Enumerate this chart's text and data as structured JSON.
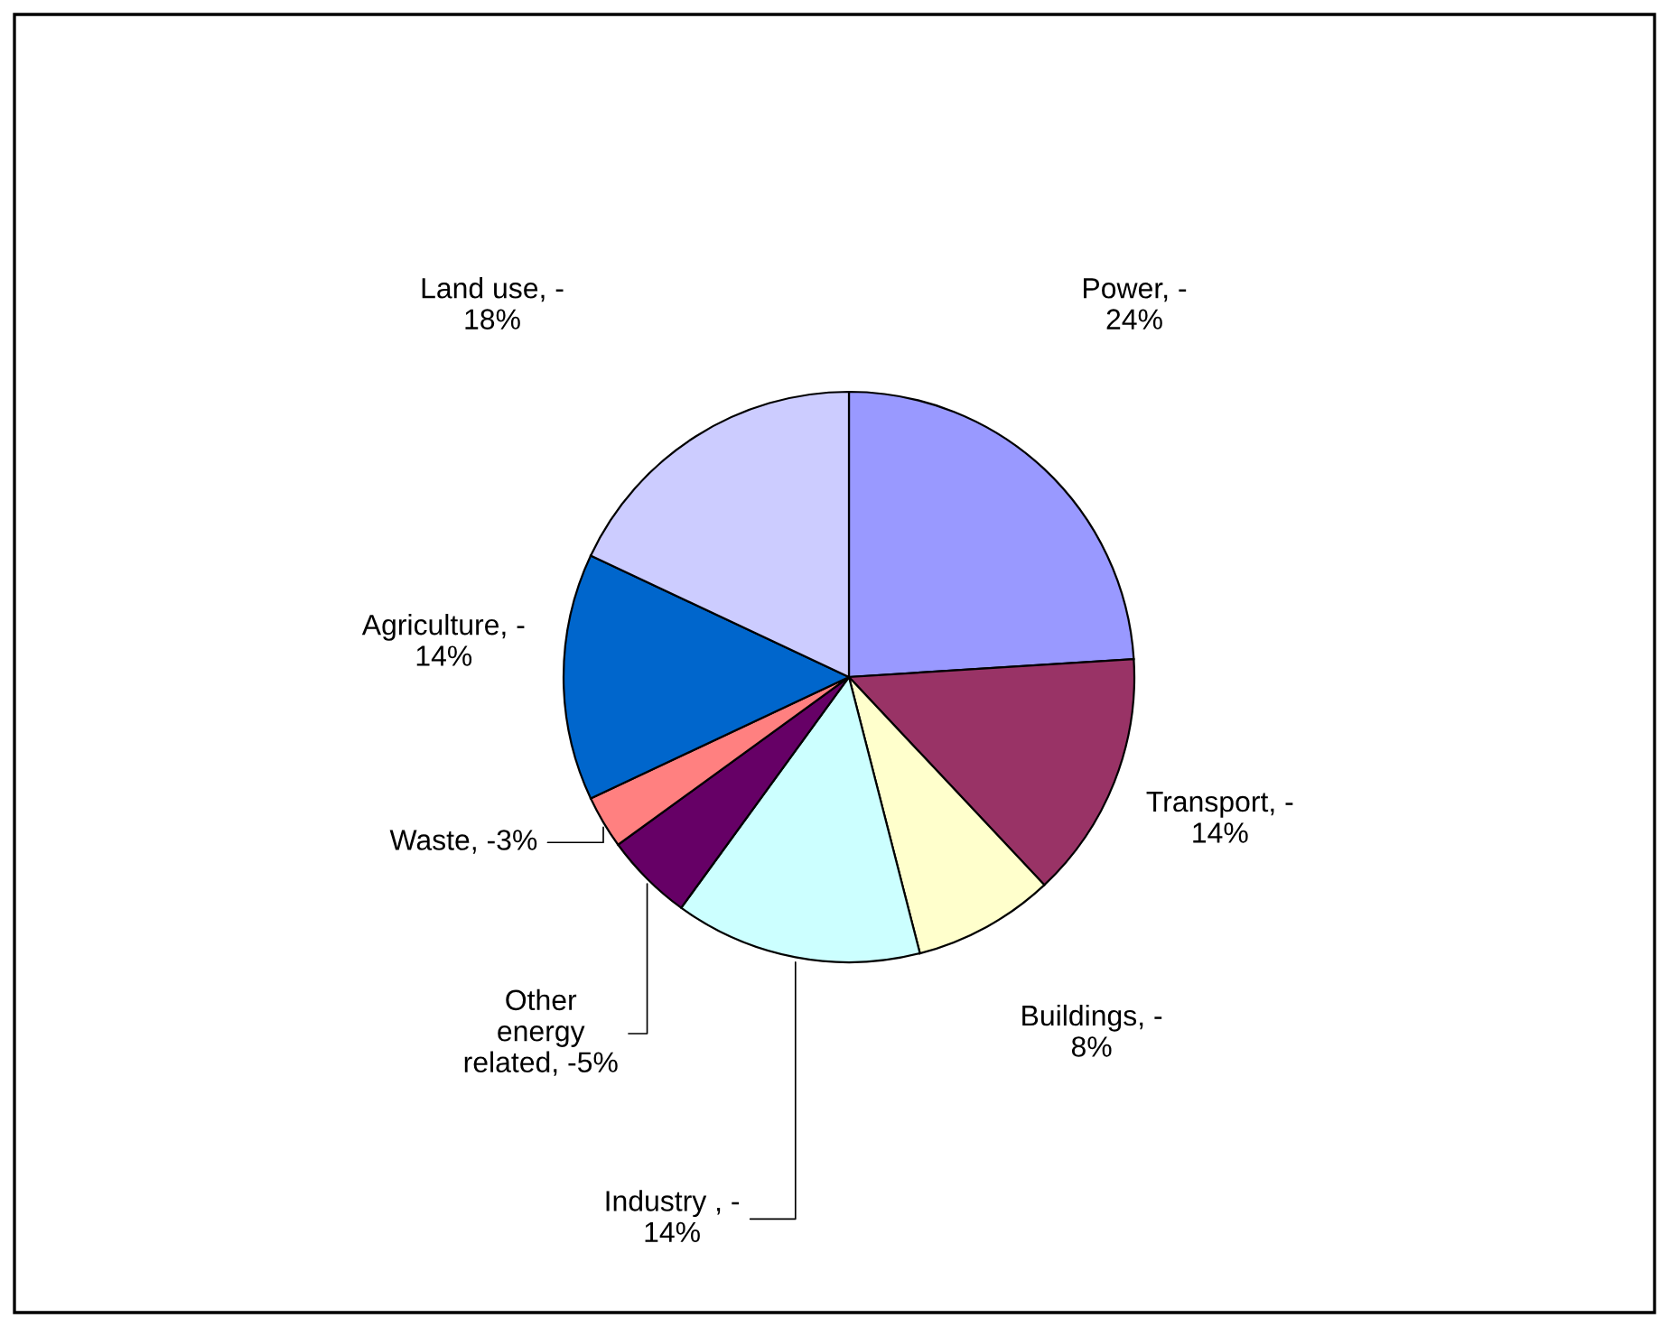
{
  "chart_data": {
    "type": "pie",
    "categories": [
      "Power, -\n24%",
      "Transport, -\n14%",
      "Buildings, -\n8%",
      "Industry , -\n14%",
      "Other\nenergy\nrelated, -5%",
      "Waste, -3%",
      "Agriculture, -\n14%",
      "Land use, -\n18%"
    ],
    "values": [
      24,
      14,
      8,
      14,
      5,
      3,
      14,
      18
    ],
    "colors": [
      "#9999ff",
      "#993366",
      "#ffffcc",
      "#ccffff",
      "#660066",
      "#ff8080",
      "#0066cc",
      "#ccccff"
    ],
    "legend": false
  }
}
